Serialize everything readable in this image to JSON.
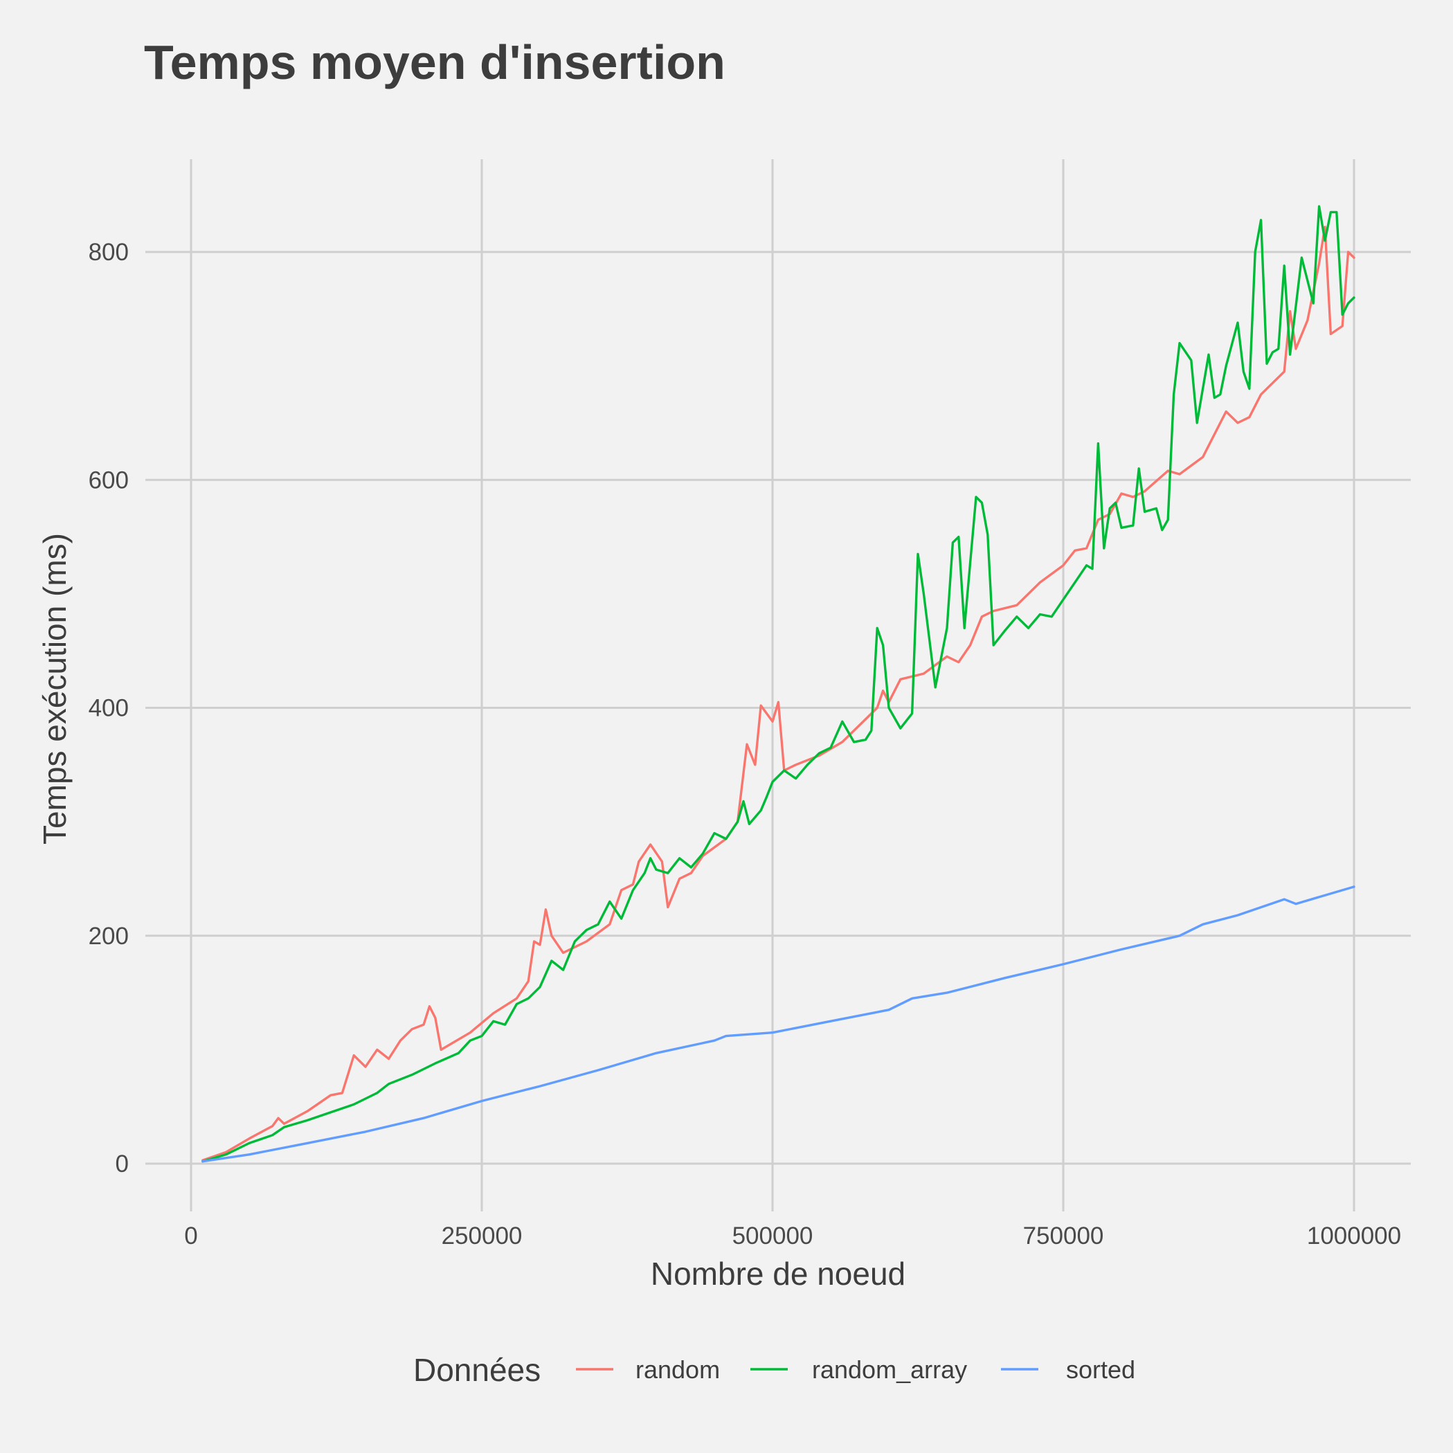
{
  "chart_data": {
    "type": "line",
    "title": "Temps moyen d'insertion",
    "xlabel": "Nombre de noeud",
    "ylabel": "Temps exécution (ms)",
    "xlim": [
      0,
      1000000
    ],
    "ylim": [
      0,
      850
    ],
    "x_ticks": [
      0,
      250000,
      500000,
      750000,
      1000000
    ],
    "x_tick_labels": [
      "0",
      "250000",
      "500000",
      "750000",
      "1000000"
    ],
    "y_ticks": [
      0,
      200,
      400,
      600,
      800
    ],
    "y_tick_labels": [
      "0",
      "200",
      "400",
      "600",
      "800"
    ],
    "grid": true,
    "legend": {
      "title": "Données",
      "position": "bottom"
    },
    "series": [
      {
        "name": "random",
        "color": "#f8766d",
        "points": [
          [
            10000,
            3
          ],
          [
            30000,
            10
          ],
          [
            50000,
            22
          ],
          [
            70000,
            33
          ],
          [
            75000,
            40
          ],
          [
            80000,
            35
          ],
          [
            100000,
            46
          ],
          [
            120000,
            60
          ],
          [
            130000,
            62
          ],
          [
            140000,
            95
          ],
          [
            150000,
            85
          ],
          [
            160000,
            100
          ],
          [
            170000,
            92
          ],
          [
            180000,
            108
          ],
          [
            190000,
            118
          ],
          [
            200000,
            122
          ],
          [
            205000,
            138
          ],
          [
            210000,
            128
          ],
          [
            215000,
            100
          ],
          [
            240000,
            115
          ],
          [
            260000,
            132
          ],
          [
            280000,
            145
          ],
          [
            290000,
            160
          ],
          [
            295000,
            195
          ],
          [
            300000,
            192
          ],
          [
            305000,
            223
          ],
          [
            310000,
            200
          ],
          [
            320000,
            185
          ],
          [
            340000,
            195
          ],
          [
            360000,
            210
          ],
          [
            370000,
            240
          ],
          [
            380000,
            245
          ],
          [
            385000,
            265
          ],
          [
            395000,
            280
          ],
          [
            405000,
            265
          ],
          [
            410000,
            225
          ],
          [
            420000,
            250
          ],
          [
            430000,
            255
          ],
          [
            440000,
            270
          ],
          [
            460000,
            285
          ],
          [
            470000,
            300
          ],
          [
            478000,
            368
          ],
          [
            485000,
            350
          ],
          [
            490000,
            402
          ],
          [
            500000,
            388
          ],
          [
            505000,
            405
          ],
          [
            510000,
            345
          ],
          [
            520000,
            350
          ],
          [
            540000,
            358
          ],
          [
            560000,
            370
          ],
          [
            580000,
            390
          ],
          [
            590000,
            400
          ],
          [
            595000,
            415
          ],
          [
            600000,
            405
          ],
          [
            610000,
            425
          ],
          [
            630000,
            430
          ],
          [
            650000,
            445
          ],
          [
            660000,
            440
          ],
          [
            670000,
            455
          ],
          [
            680000,
            480
          ],
          [
            690000,
            485
          ],
          [
            710000,
            490
          ],
          [
            730000,
            510
          ],
          [
            750000,
            525
          ],
          [
            760000,
            538
          ],
          [
            770000,
            540
          ],
          [
            780000,
            565
          ],
          [
            790000,
            570
          ],
          [
            800000,
            588
          ],
          [
            810000,
            585
          ],
          [
            820000,
            590
          ],
          [
            840000,
            608
          ],
          [
            850000,
            605
          ],
          [
            870000,
            620
          ],
          [
            880000,
            640
          ],
          [
            890000,
            660
          ],
          [
            900000,
            650
          ],
          [
            910000,
            655
          ],
          [
            920000,
            675
          ],
          [
            930000,
            685
          ],
          [
            940000,
            695
          ],
          [
            945000,
            748
          ],
          [
            950000,
            715
          ],
          [
            960000,
            740
          ],
          [
            970000,
            790
          ],
          [
            975000,
            822
          ],
          [
            980000,
            728
          ],
          [
            990000,
            735
          ],
          [
            995000,
            800
          ],
          [
            1000000,
            795
          ]
        ]
      },
      {
        "name": "random_array",
        "color": "#00ba38",
        "points": [
          [
            10000,
            2
          ],
          [
            30000,
            8
          ],
          [
            50000,
            18
          ],
          [
            70000,
            25
          ],
          [
            80000,
            32
          ],
          [
            100000,
            38
          ],
          [
            120000,
            45
          ],
          [
            140000,
            52
          ],
          [
            160000,
            62
          ],
          [
            170000,
            70
          ],
          [
            190000,
            78
          ],
          [
            210000,
            88
          ],
          [
            230000,
            97
          ],
          [
            240000,
            108
          ],
          [
            250000,
            112
          ],
          [
            260000,
            125
          ],
          [
            270000,
            122
          ],
          [
            280000,
            140
          ],
          [
            290000,
            145
          ],
          [
            300000,
            155
          ],
          [
            310000,
            178
          ],
          [
            320000,
            170
          ],
          [
            330000,
            195
          ],
          [
            340000,
            205
          ],
          [
            350000,
            210
          ],
          [
            360000,
            230
          ],
          [
            370000,
            215
          ],
          [
            380000,
            240
          ],
          [
            390000,
            255
          ],
          [
            395000,
            268
          ],
          [
            400000,
            258
          ],
          [
            410000,
            255
          ],
          [
            420000,
            268
          ],
          [
            430000,
            260
          ],
          [
            440000,
            272
          ],
          [
            450000,
            290
          ],
          [
            460000,
            285
          ],
          [
            470000,
            300
          ],
          [
            475000,
            318
          ],
          [
            480000,
            298
          ],
          [
            490000,
            310
          ],
          [
            495000,
            322
          ],
          [
            500000,
            335
          ],
          [
            510000,
            345
          ],
          [
            520000,
            338
          ],
          [
            530000,
            350
          ],
          [
            540000,
            360
          ],
          [
            550000,
            365
          ],
          [
            560000,
            388
          ],
          [
            570000,
            370
          ],
          [
            580000,
            372
          ],
          [
            585000,
            380
          ],
          [
            590000,
            470
          ],
          [
            595000,
            455
          ],
          [
            600000,
            400
          ],
          [
            610000,
            382
          ],
          [
            620000,
            395
          ],
          [
            625000,
            535
          ],
          [
            630000,
            500
          ],
          [
            640000,
            418
          ],
          [
            650000,
            470
          ],
          [
            655000,
            545
          ],
          [
            660000,
            550
          ],
          [
            665000,
            470
          ],
          [
            675000,
            585
          ],
          [
            680000,
            580
          ],
          [
            685000,
            552
          ],
          [
            690000,
            455
          ],
          [
            700000,
            468
          ],
          [
            710000,
            480
          ],
          [
            720000,
            470
          ],
          [
            730000,
            482
          ],
          [
            740000,
            480
          ],
          [
            750000,
            495
          ],
          [
            760000,
            510
          ],
          [
            770000,
            525
          ],
          [
            775000,
            522
          ],
          [
            780000,
            632
          ],
          [
            785000,
            540
          ],
          [
            790000,
            575
          ],
          [
            795000,
            580
          ],
          [
            800000,
            558
          ],
          [
            810000,
            560
          ],
          [
            815000,
            610
          ],
          [
            820000,
            572
          ],
          [
            830000,
            575
          ],
          [
            835000,
            556
          ],
          [
            840000,
            565
          ],
          [
            845000,
            675
          ],
          [
            850000,
            720
          ],
          [
            860000,
            705
          ],
          [
            865000,
            650
          ],
          [
            875000,
            710
          ],
          [
            880000,
            672
          ],
          [
            885000,
            675
          ],
          [
            890000,
            700
          ],
          [
            900000,
            738
          ],
          [
            905000,
            695
          ],
          [
            910000,
            680
          ],
          [
            915000,
            800
          ],
          [
            920000,
            828
          ],
          [
            925000,
            702
          ],
          [
            930000,
            712
          ],
          [
            935000,
            715
          ],
          [
            940000,
            788
          ],
          [
            945000,
            710
          ],
          [
            955000,
            795
          ],
          [
            965000,
            755
          ],
          [
            970000,
            840
          ],
          [
            975000,
            810
          ],
          [
            980000,
            835
          ],
          [
            985000,
            835
          ],
          [
            990000,
            745
          ],
          [
            995000,
            755
          ],
          [
            1000000,
            760
          ]
        ]
      },
      {
        "name": "sorted",
        "color": "#619cff",
        "points": [
          [
            10000,
            2
          ],
          [
            50000,
            8
          ],
          [
            100000,
            18
          ],
          [
            150000,
            28
          ],
          [
            200000,
            40
          ],
          [
            250000,
            55
          ],
          [
            300000,
            68
          ],
          [
            350000,
            82
          ],
          [
            400000,
            97
          ],
          [
            450000,
            108
          ],
          [
            460000,
            112
          ],
          [
            500000,
            115
          ],
          [
            550000,
            125
          ],
          [
            600000,
            135
          ],
          [
            620000,
            145
          ],
          [
            650000,
            150
          ],
          [
            700000,
            163
          ],
          [
            750000,
            175
          ],
          [
            800000,
            188
          ],
          [
            850000,
            200
          ],
          [
            870000,
            210
          ],
          [
            900000,
            218
          ],
          [
            940000,
            232
          ],
          [
            950000,
            228
          ],
          [
            1000000,
            243
          ]
        ]
      }
    ]
  }
}
